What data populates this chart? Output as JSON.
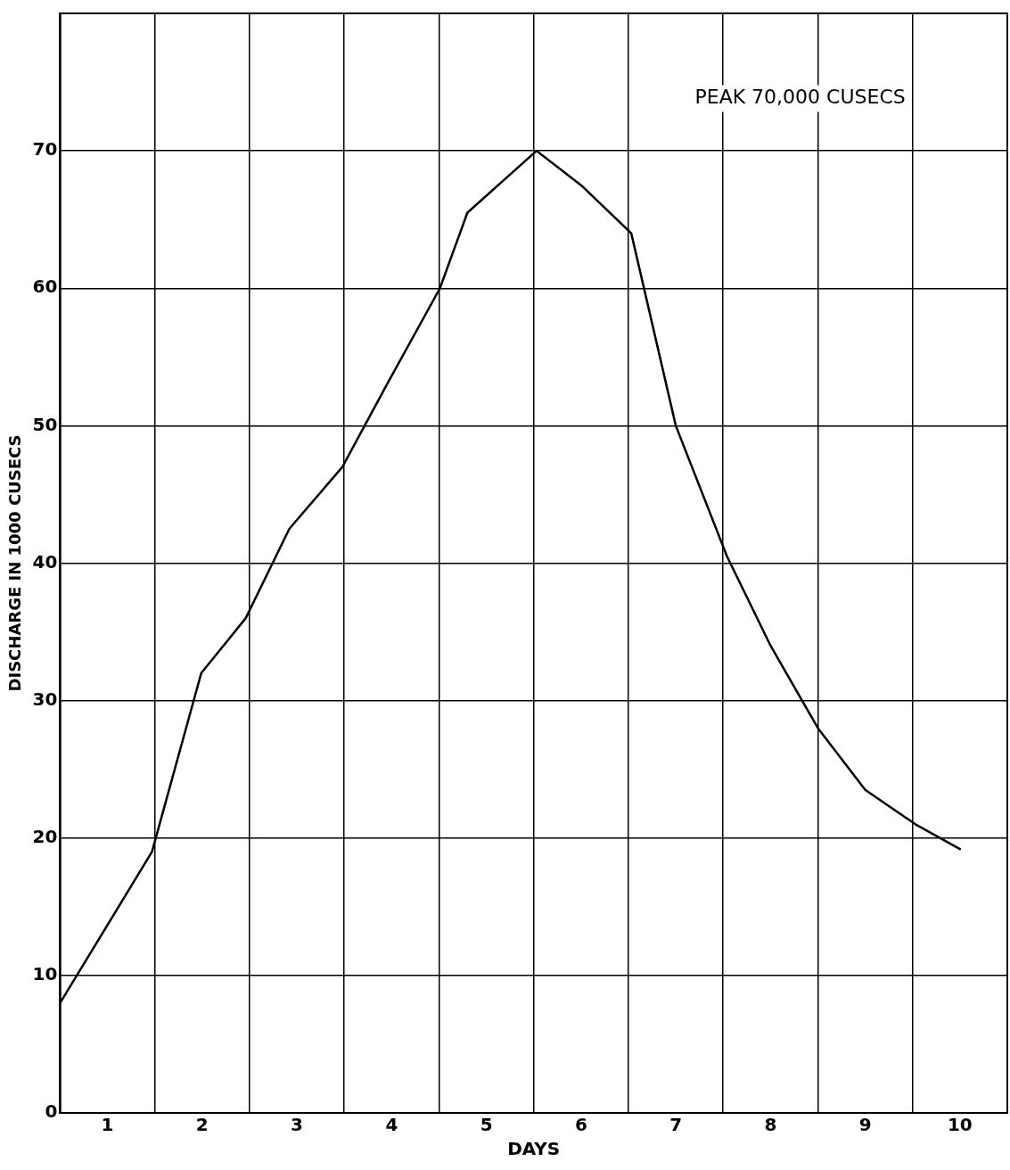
{
  "chart_data": {
    "type": "line",
    "xlabel": "DAYS",
    "ylabel": "DISCHARGE IN 1000 CUSECS",
    "annotations": [
      "PEAK 70,000 CUSECS"
    ],
    "xlim": [
      0,
      10
    ],
    "xticks": [
      {
        "value": 0,
        "label": null
      },
      {
        "value": 0.5,
        "label": "1"
      },
      {
        "value": 1,
        "label": null
      },
      {
        "value": 1.5,
        "label": "2"
      },
      {
        "value": 2,
        "label": null
      },
      {
        "value": 2.5,
        "label": "3"
      },
      {
        "value": 3,
        "label": null
      },
      {
        "value": 3.5,
        "label": "4"
      },
      {
        "value": 4,
        "label": null
      },
      {
        "value": 4.5,
        "label": "5"
      },
      {
        "value": 5,
        "label": null
      },
      {
        "value": 5.5,
        "label": "6"
      },
      {
        "value": 6,
        "label": null
      },
      {
        "value": 6.5,
        "label": "7"
      },
      {
        "value": 7,
        "label": null
      },
      {
        "value": 7.5,
        "label": "8"
      },
      {
        "value": 8,
        "label": null
      },
      {
        "value": 8.5,
        "label": "9"
      },
      {
        "value": 9,
        "label": null
      },
      {
        "value": 9.5,
        "label": "10"
      },
      {
        "value": 10,
        "label": null
      }
    ],
    "ylim": [
      0,
      80
    ],
    "yticks": [
      0,
      10,
      20,
      30,
      40,
      50,
      60,
      70,
      {
        "value": 80,
        "label": null
      }
    ],
    "grid": true,
    "marker": "none",
    "line_style": "solid",
    "series": [
      {
        "color": "#000000",
        "x": [
          0,
          0.97,
          1.49,
          1.96,
          2.42,
          2.98,
          3.45,
          4.01,
          4.3,
          5.03,
          5.5,
          6.03,
          6.5,
          7.04,
          7.5,
          8.0,
          8.5,
          9.03,
          9.5
        ],
        "values": [
          8,
          19,
          32,
          36,
          42.5,
          47,
          53,
          60,
          65.5,
          70,
          67.5,
          64,
          50,
          40.5,
          34,
          28,
          23.5,
          21,
          19.2
        ]
      }
    ]
  }
}
